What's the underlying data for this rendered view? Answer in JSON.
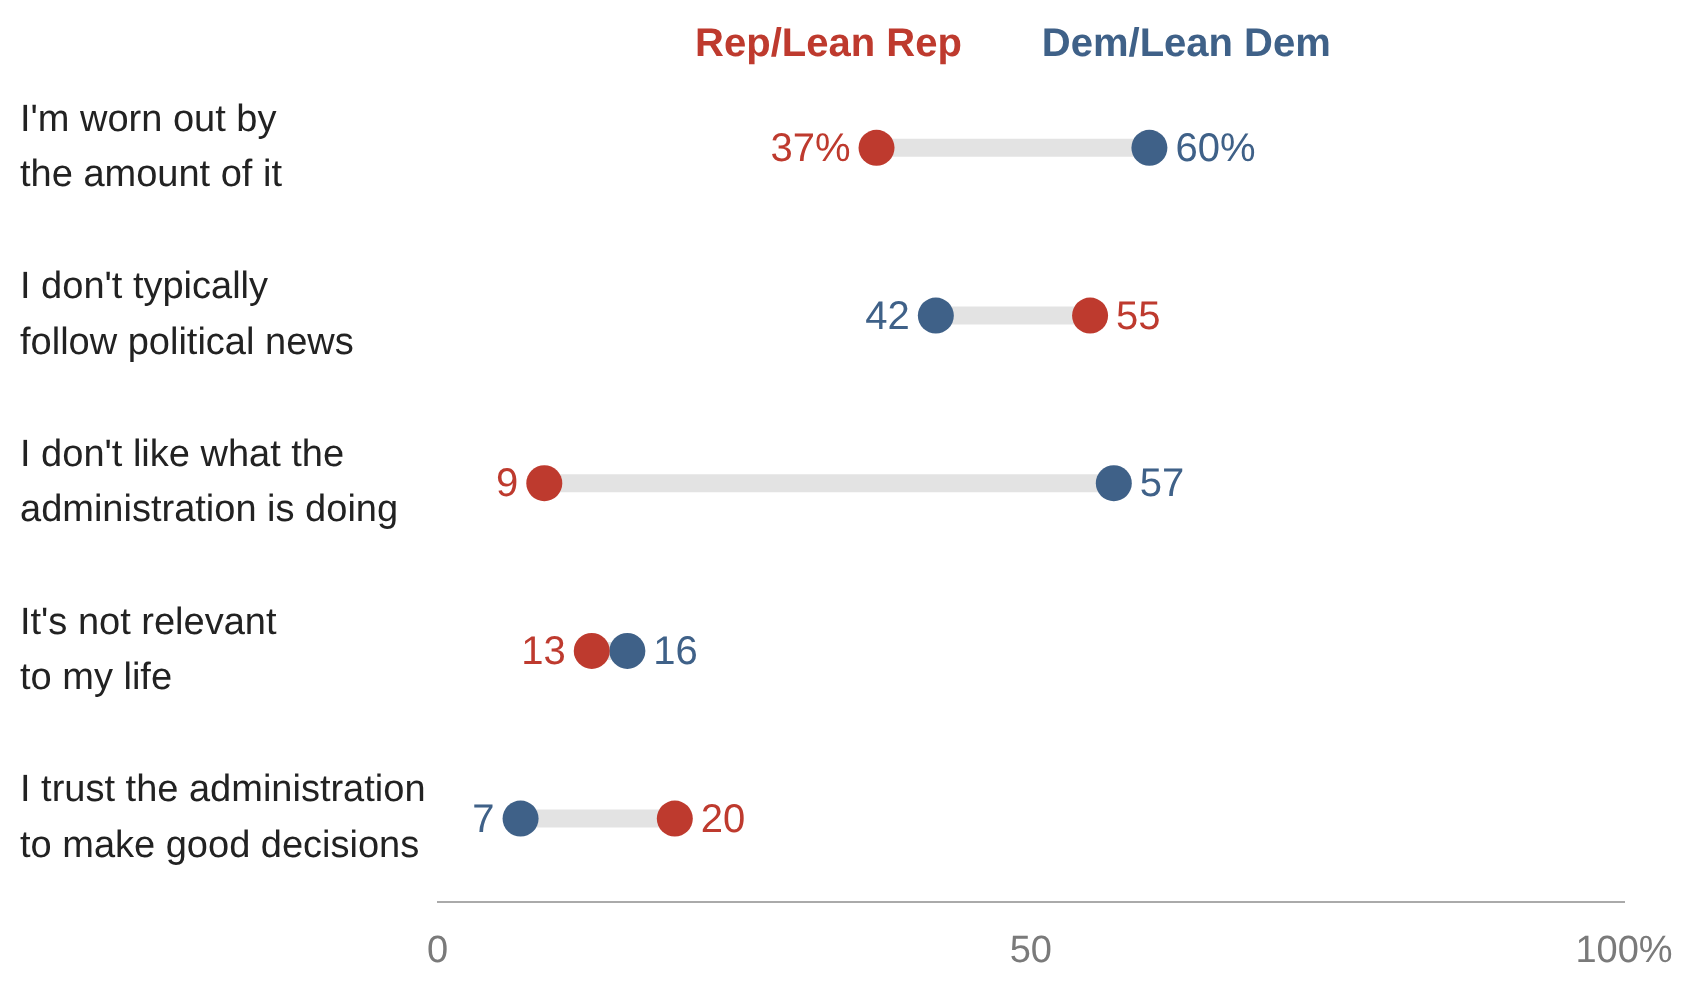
{
  "chart_data": {
    "type": "scatter",
    "orientation": "horizontal",
    "categories": [
      "I'm worn out by the amount of it",
      "I don't typically follow political news",
      "I don't like what the administration is doing",
      "It's not relevant to my life",
      "I trust the administration to make good decisions"
    ],
    "series": [
      {
        "name": "Rep/Lean Rep",
        "color": "#be3a2e",
        "values": [
          37,
          55,
          9,
          13,
          20
        ],
        "value_labels": [
          "37%",
          "55",
          "9",
          "13",
          "20"
        ]
      },
      {
        "name": "Dem/Lean Dem",
        "color": "#3f6188",
        "values": [
          60,
          42,
          57,
          16,
          7
        ],
        "value_labels": [
          "60%",
          "42",
          "57",
          "16",
          "7"
        ]
      }
    ],
    "xlim": [
      0,
      100
    ],
    "xticks": [
      0,
      50,
      {
        "value": 100,
        "label": "100%"
      }
    ],
    "grid": false,
    "legend": "top",
    "marker": "circle"
  }
}
